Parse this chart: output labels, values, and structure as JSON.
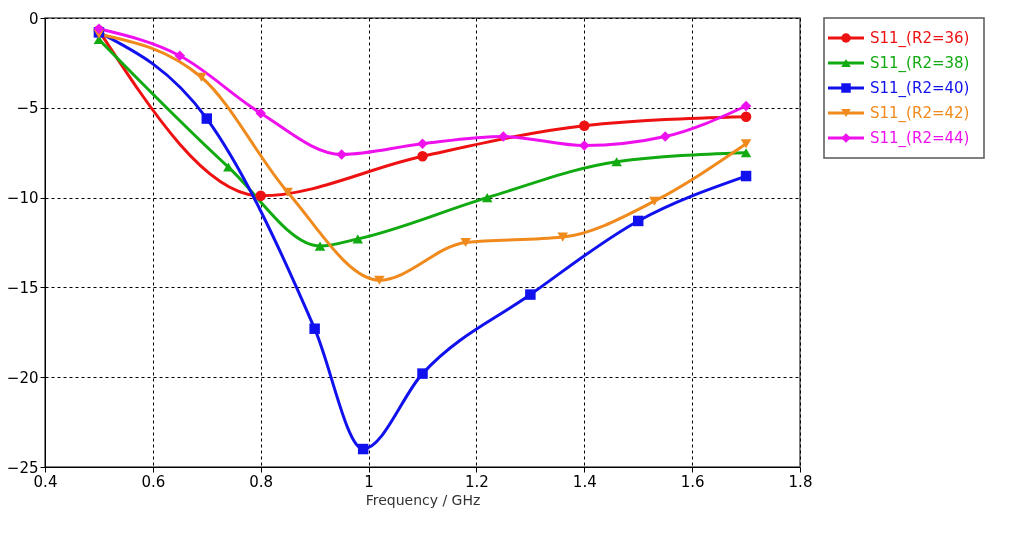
{
  "chart_data": {
    "type": "line",
    "xlabel": "Frequency / GHz",
    "xlim": [
      0.4,
      1.8
    ],
    "xticks": [
      0.4,
      0.6,
      0.8,
      1,
      1.2,
      1.4,
      1.6,
      1.8
    ],
    "ylim": [
      -25,
      0
    ],
    "yticks": [
      0,
      -5,
      -10,
      -15,
      -20,
      -25
    ],
    "grid": true,
    "legend": "top right",
    "line_style": "solid",
    "series": [
      {
        "name": "S11_(R2=36)",
        "color": "#ee1111",
        "marker": "circle",
        "x": [
          0.5,
          0.8,
          1.1,
          1.4,
          1.7
        ],
        "values": [
          -0.7,
          -9.9,
          -7.7,
          -6.0,
          -5.5
        ]
      },
      {
        "name": "S11_(R2=38)",
        "color": "#11aa11",
        "marker": "triangle",
        "x": [
          0.5,
          0.74,
          0.91,
          0.98,
          1.22,
          1.46,
          1.7
        ],
        "values": [
          -1.2,
          -8.3,
          -12.7,
          -12.3,
          -10.0,
          -8.0,
          -7.5
        ]
      },
      {
        "name": "S11_(R2=40)",
        "color": "#1111ee",
        "marker": "square",
        "x": [
          0.5,
          0.7,
          0.9,
          0.99,
          1.1,
          1.3,
          1.5,
          1.7
        ],
        "values": [
          -0.8,
          -5.6,
          -17.3,
          -24.0,
          -19.8,
          -15.4,
          -11.3,
          -8.8
        ]
      },
      {
        "name": "S11_(R2=42)",
        "color": "#f08a1c",
        "marker": "triangle-down",
        "x": [
          0.5,
          0.69,
          0.85,
          1.02,
          1.18,
          1.36,
          1.53,
          1.7
        ],
        "values": [
          -0.9,
          -3.3,
          -9.7,
          -14.6,
          -12.5,
          -12.2,
          -10.2,
          -7.0
        ]
      },
      {
        "name": "S11_(R2=44)",
        "color": "#ee11ee",
        "marker": "diamond",
        "x": [
          0.5,
          0.65,
          0.8,
          0.95,
          1.1,
          1.25,
          1.4,
          1.55,
          1.7
        ],
        "values": [
          -0.6,
          -2.1,
          -5.3,
          -7.6,
          -7.0,
          -6.6,
          -7.1,
          -6.6,
          -4.9
        ]
      }
    ]
  }
}
